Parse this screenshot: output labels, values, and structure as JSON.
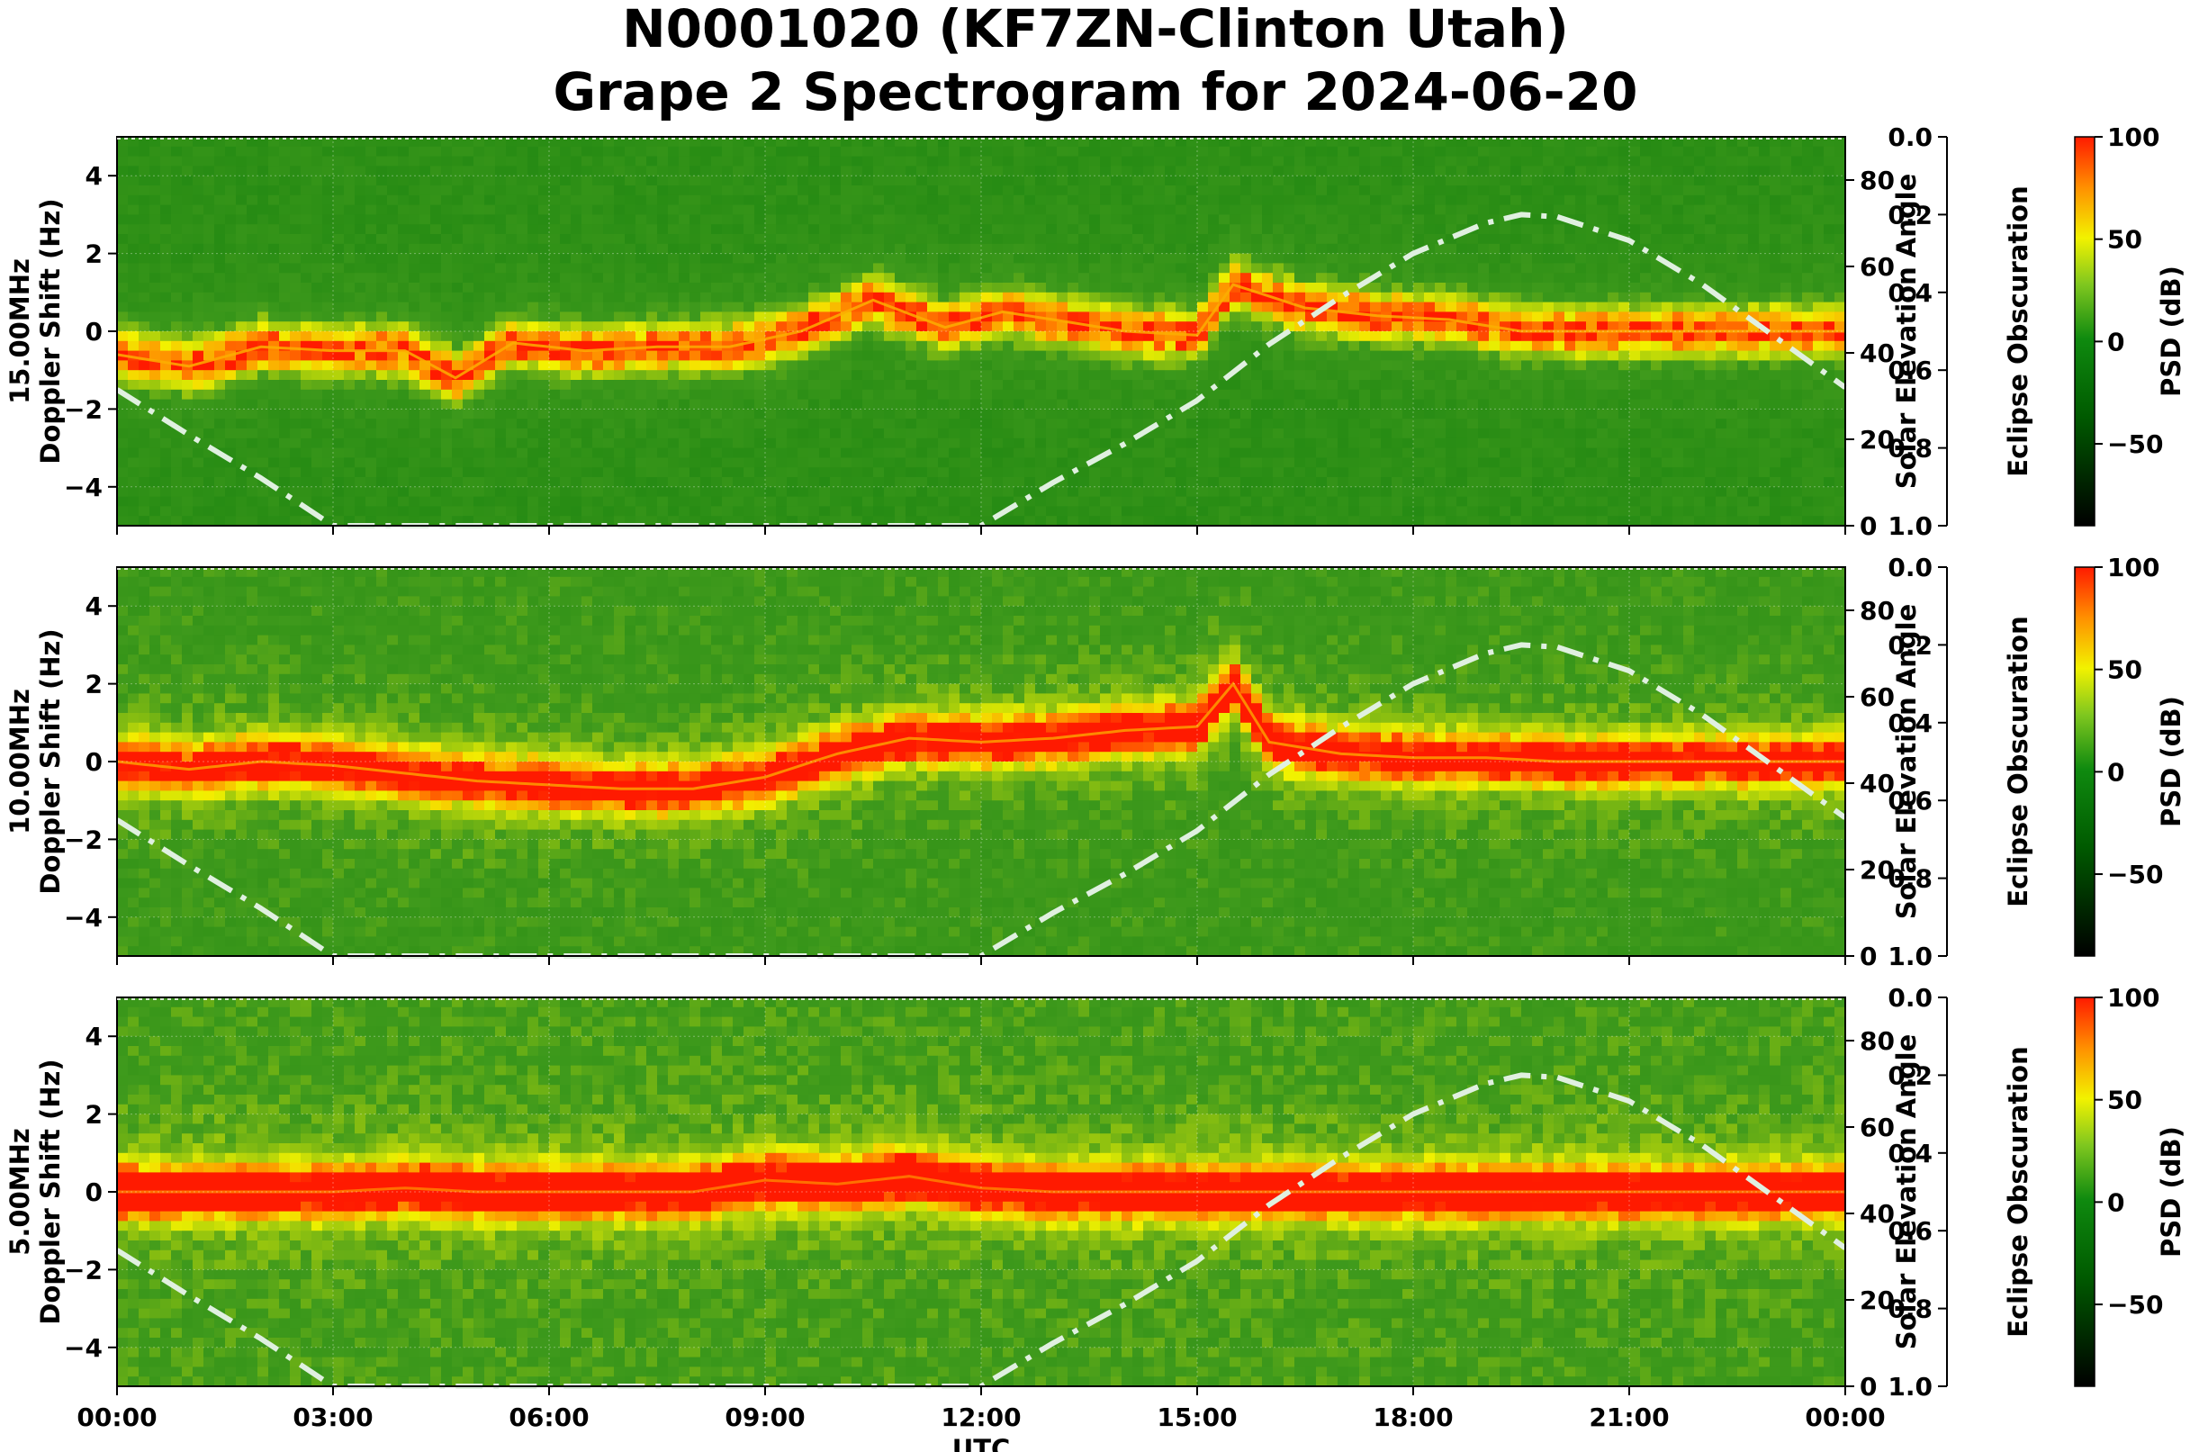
{
  "title": {
    "line1": "N0001020 (KF7ZN-Clinton Utah)",
    "line2": "Grape 2 Spectrogram for 2024-06-20"
  },
  "colors": {
    "background_green": "#0a7a0a",
    "mid_green": "#3f9a1c",
    "yellow": "#f2f200",
    "orange": "#ff8c00",
    "red": "#ff1a00",
    "solar_curve": "#e0f0e0"
  },
  "chart_data": [
    {
      "type": "heatmap",
      "frequency_label": "15.00MHz",
      "ylabel": "Doppler Shift (Hz)",
      "y2label": "Solar Elevation Angle",
      "y3label": "Eclipse Obscuration",
      "colorbar_label": "PSD (dB)",
      "ylim": [
        -5,
        5
      ],
      "y_ticks": [
        "4",
        "2",
        "0",
        "−2",
        "−4"
      ],
      "y2lim": [
        0,
        90
      ],
      "y2_ticks": [
        "80",
        "60",
        "40",
        "20",
        "0"
      ],
      "y3lim": [
        0,
        1
      ],
      "y3_ticks": [
        "0.0",
        "0.2",
        "0.4",
        "0.6",
        "0.8",
        "1.0"
      ],
      "colorbar_ticks": [
        "100",
        "50",
        "0",
        "−50"
      ],
      "colorbar_range": [
        -90,
        100
      ],
      "background_level": 0.3,
      "carrier_trace": [
        [
          0,
          -0.6
        ],
        [
          1,
          -0.9
        ],
        [
          2,
          -0.4
        ],
        [
          3,
          -0.5
        ],
        [
          4,
          -0.5
        ],
        [
          4.7,
          -1.2
        ],
        [
          5.5,
          -0.3
        ],
        [
          6.5,
          -0.5
        ],
        [
          7.5,
          -0.4
        ],
        [
          8.5,
          -0.4
        ],
        [
          9.5,
          0.0
        ],
        [
          10.5,
          0.8
        ],
        [
          11.5,
          0.1
        ],
        [
          12.3,
          0.5
        ],
        [
          13,
          0.3
        ],
        [
          14,
          0.0
        ],
        [
          15,
          -0.1
        ],
        [
          15.5,
          1.2
        ],
        [
          16.5,
          0.6
        ],
        [
          17.5,
          0.4
        ],
        [
          18.5,
          0.3
        ],
        [
          19.5,
          0.0
        ],
        [
          20.5,
          0.0
        ],
        [
          21.5,
          0.0
        ],
        [
          22.5,
          0.0
        ],
        [
          24,
          0.0
        ]
      ],
      "trace_level": 0.62,
      "solar_elevation": [
        [
          0,
          31.5
        ],
        [
          1,
          21
        ],
        [
          2,
          11
        ],
        [
          3,
          0
        ],
        [
          12,
          0
        ],
        [
          13,
          10
        ],
        [
          14,
          19
        ],
        [
          15,
          29
        ],
        [
          16,
          42
        ],
        [
          17,
          53
        ],
        [
          18,
          63
        ],
        [
          19,
          70
        ],
        [
          19.5,
          72
        ],
        [
          20,
          71.5
        ],
        [
          21,
          66
        ],
        [
          22,
          56
        ],
        [
          23,
          44
        ],
        [
          24,
          32
        ]
      ]
    },
    {
      "type": "heatmap",
      "frequency_label": "10.00MHz",
      "ylabel": "Doppler Shift (Hz)",
      "y2label": "Solar Elevation Angle",
      "y3label": "Eclipse Obscuration",
      "colorbar_label": "PSD (dB)",
      "ylim": [
        -5,
        5
      ],
      "y_ticks": [
        "4",
        "2",
        "0",
        "−2",
        "−4"
      ],
      "y2lim": [
        0,
        90
      ],
      "y2_ticks": [
        "80",
        "60",
        "40",
        "20",
        "0"
      ],
      "y3lim": [
        0,
        1
      ],
      "y3_ticks": [
        "0.0",
        "0.2",
        "0.4",
        "0.6",
        "0.8",
        "1.0"
      ],
      "colorbar_ticks": [
        "100",
        "50",
        "0",
        "−50"
      ],
      "colorbar_range": [
        -90,
        100
      ],
      "background_level": 0.42,
      "carrier_trace": [
        [
          0,
          0.0
        ],
        [
          1,
          -0.2
        ],
        [
          2,
          0.0
        ],
        [
          3,
          -0.1
        ],
        [
          4,
          -0.3
        ],
        [
          5,
          -0.5
        ],
        [
          6,
          -0.6
        ],
        [
          7,
          -0.7
        ],
        [
          8,
          -0.7
        ],
        [
          9,
          -0.4
        ],
        [
          10,
          0.2
        ],
        [
          11,
          0.6
        ],
        [
          12,
          0.5
        ],
        [
          13,
          0.6
        ],
        [
          14,
          0.8
        ],
        [
          15,
          0.9
        ],
        [
          15.5,
          2.0
        ],
        [
          16,
          0.5
        ],
        [
          17,
          0.2
        ],
        [
          18,
          0.1
        ],
        [
          19,
          0.1
        ],
        [
          20,
          0.0
        ],
        [
          21,
          0.0
        ],
        [
          22,
          0.0
        ],
        [
          23,
          0.0
        ],
        [
          24,
          0.0
        ]
      ],
      "trace_level": 0.7,
      "solar_elevation": [
        [
          0,
          31.5
        ],
        [
          1,
          21
        ],
        [
          2,
          11
        ],
        [
          3,
          0
        ],
        [
          12,
          0
        ],
        [
          13,
          10
        ],
        [
          14,
          19
        ],
        [
          15,
          29
        ],
        [
          16,
          42
        ],
        [
          17,
          53
        ],
        [
          18,
          63
        ],
        [
          19,
          70
        ],
        [
          19.5,
          72
        ],
        [
          20,
          71.5
        ],
        [
          21,
          66
        ],
        [
          22,
          56
        ],
        [
          23,
          44
        ],
        [
          24,
          32
        ]
      ]
    },
    {
      "type": "heatmap",
      "frequency_label": "5.00MHz",
      "ylabel": "Doppler Shift (Hz)",
      "y2label": "Solar Elevation Angle",
      "y3label": "Eclipse Obscuration",
      "xlabel": "UTC",
      "x_ticks": [
        "00:00",
        "03:00",
        "06:00",
        "09:00",
        "12:00",
        "15:00",
        "18:00",
        "21:00",
        "00:00"
      ],
      "colorbar_label": "PSD (dB)",
      "ylim": [
        -5,
        5
      ],
      "y_ticks": [
        "4",
        "2",
        "0",
        "−2",
        "−4"
      ],
      "y2lim": [
        0,
        90
      ],
      "y2_ticks": [
        "80",
        "60",
        "40",
        "20",
        "0"
      ],
      "y3lim": [
        0,
        1
      ],
      "y3_ticks": [
        "0.0",
        "0.2",
        "0.4",
        "0.6",
        "0.8",
        "1.0"
      ],
      "colorbar_ticks": [
        "100",
        "50",
        "0",
        "−50"
      ],
      "colorbar_range": [
        -90,
        100
      ],
      "background_level": 0.45,
      "carrier_trace": [
        [
          0,
          0.0
        ],
        [
          2,
          0.0
        ],
        [
          3,
          0.0
        ],
        [
          4,
          0.1
        ],
        [
          5,
          0.0
        ],
        [
          6,
          0.0
        ],
        [
          7,
          0.0
        ],
        [
          8,
          0.0
        ],
        [
          9,
          0.3
        ],
        [
          10,
          0.2
        ],
        [
          11,
          0.4
        ],
        [
          12,
          0.1
        ],
        [
          13,
          0.0
        ],
        [
          14,
          0.0
        ],
        [
          15,
          0.0
        ],
        [
          18,
          0.0
        ],
        [
          21,
          0.0
        ],
        [
          24,
          0.0
        ]
      ],
      "trace_level": 0.85,
      "solar_elevation": [
        [
          0,
          31.5
        ],
        [
          1,
          21
        ],
        [
          2,
          11
        ],
        [
          3,
          0
        ],
        [
          12,
          0
        ],
        [
          13,
          10
        ],
        [
          14,
          19
        ],
        [
          15,
          29
        ],
        [
          16,
          42
        ],
        [
          17,
          53
        ],
        [
          18,
          63
        ],
        [
          19,
          70
        ],
        [
          19.5,
          72
        ],
        [
          20,
          71.5
        ],
        [
          21,
          66
        ],
        [
          22,
          56
        ],
        [
          23,
          44
        ],
        [
          24,
          32
        ]
      ]
    }
  ]
}
